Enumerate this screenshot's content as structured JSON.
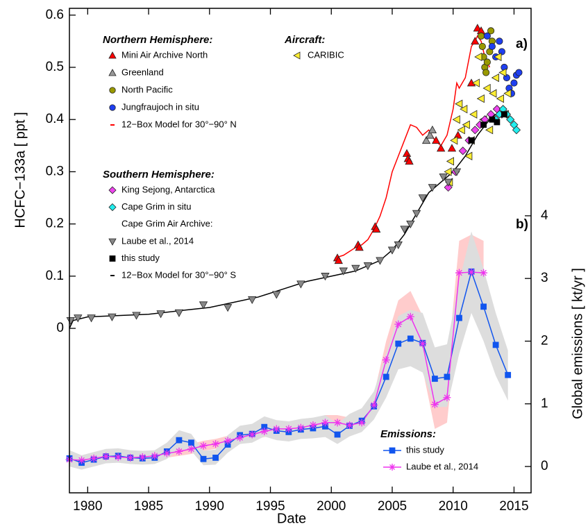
{
  "chart_data": {
    "type": "line",
    "xlabel": "Date",
    "ylabel": "HCFC−133a [ ppt ]",
    "y2label": "Global emissions  [ kt/yr ]",
    "panel_labels": [
      "a)",
      "b)"
    ],
    "xlim": [
      1978.5,
      2016.4
    ],
    "xticks": [
      1980,
      1985,
      1990,
      1995,
      2000,
      2005,
      2010,
      2015
    ],
    "ylim": [
      -0.315,
      0.613
    ],
    "yticks": [
      0,
      0.1,
      0.2,
      0.3,
      0.4,
      0.5,
      0.6
    ],
    "y2lim": [
      -0.42,
      7.31
    ],
    "y2ticks": [
      0,
      1,
      2,
      3,
      4
    ],
    "legend": [
      {
        "title": "Northern Hemisphere:",
        "items": [
          0,
          1,
          2,
          3,
          4
        ]
      },
      {
        "title": "Aircraft:",
        "items": [
          5
        ]
      },
      {
        "title": "Southern Hemisphere:",
        "items": [
          6,
          7
        ]
      },
      {
        "title": "Cape Grim Air Archive:",
        "items": [
          8,
          9,
          10
        ]
      },
      {
        "title": "Emissions:",
        "items": [
          11,
          12
        ]
      }
    ],
    "series": [
      {
        "name": "Mini Air Archive North",
        "color": "#ff0000",
        "label_color": "#ff0000",
        "marker": "triangle-up",
        "line": false,
        "x": [
          2000.5,
          2000.6,
          2002.2,
          2002.3,
          2003.6,
          2003.7,
          2006.2,
          2006.3,
          2006.4,
          2008.6,
          2009.0,
          2009.9,
          2010.4,
          2011.5,
          2011.8,
          2012.0,
          2012.3
        ],
        "values": [
          0.135,
          0.13,
          0.16,
          0.155,
          0.195,
          0.19,
          0.335,
          0.325,
          0.32,
          0.36,
          0.345,
          0.345,
          0.37,
          0.47,
          0.55,
          0.575,
          0.57
        ]
      },
      {
        "name": "Greenland",
        "color": "#999999",
        "label_color": "#999999",
        "marker": "triangle-up",
        "line": false,
        "x": [
          2007.8,
          2008.1,
          2008.3
        ],
        "values": [
          0.36,
          0.37,
          0.38
        ]
      },
      {
        "name": "North Pacific",
        "color": "#999900",
        "label_color": "#999900",
        "marker": "circle",
        "line": false,
        "x": [
          2012.3,
          2012.4,
          2012.5,
          2012.6,
          2012.7,
          2012.8,
          2013.0,
          2013.1,
          2013.2
        ],
        "values": [
          0.56,
          0.54,
          0.52,
          0.5,
          0.49,
          0.51,
          0.53,
          0.57,
          0.55
        ]
      },
      {
        "name": "Jungfraujoch in situ",
        "color": "#1f3ff0",
        "label_color": "#1f3ff0",
        "marker": "circle",
        "line": false,
        "x": [
          2012.8,
          2013.2,
          2013.5,
          2013.8,
          2014.0,
          2014.2,
          2014.4,
          2014.6,
          2014.8,
          2015.0,
          2015.2,
          2015.4
        ],
        "values": [
          0.56,
          0.54,
          0.52,
          0.55,
          0.53,
          0.5,
          0.48,
          0.46,
          0.45,
          0.47,
          0.485,
          0.49
        ]
      },
      {
        "name": "12−Box Model for 30°−90° N",
        "color": "#ff0000",
        "label_color": "#ff0000",
        "marker": "none",
        "line": true,
        "x": [
          2000.3,
          2001,
          2002,
          2002.5,
          2003,
          2003.5,
          2004,
          2004.5,
          2005,
          2005.5,
          2006,
          2006.5,
          2007,
          2007.5,
          2008,
          2008.5,
          2009,
          2009.5,
          2010,
          2010.3,
          2010.5,
          2011,
          2011.5,
          2011.8,
          2012,
          2012.3,
          2012.6,
          2013
        ],
        "values": [
          0.135,
          0.14,
          0.155,
          0.16,
          0.17,
          0.19,
          0.215,
          0.25,
          0.3,
          0.33,
          0.36,
          0.39,
          0.385,
          0.37,
          0.38,
          0.36,
          0.35,
          0.37,
          0.42,
          0.47,
          0.46,
          0.48,
          0.54,
          0.55,
          0.56,
          0.55,
          0.52,
          0.5
        ]
      },
      {
        "name": "CARIBIC",
        "color": "#ffee33",
        "label_color": "#000000",
        "marker": "triangle-left",
        "line": false,
        "x": [
          2009.6,
          2009.7,
          2009.8,
          2010.1,
          2010.3,
          2010.5,
          2010.7,
          2010.9,
          2011.1,
          2011.3,
          2011.5,
          2011.7,
          2011.9,
          2012.1,
          2012.3,
          2012.5,
          2012.8,
          2013.0,
          2013.3,
          2013.5,
          2013.7,
          2013.9,
          2014.1,
          2014.3,
          2014.5
        ],
        "values": [
          0.3,
          0.28,
          0.32,
          0.36,
          0.4,
          0.43,
          0.38,
          0.42,
          0.39,
          0.33,
          0.36,
          0.41,
          0.47,
          0.52,
          0.44,
          0.4,
          0.46,
          0.38,
          0.45,
          0.48,
          0.52,
          0.44,
          0.49,
          0.41,
          0.45
        ]
      },
      {
        "name": "King Sejong, Antarctica",
        "color": "#ee44ee",
        "label_color": "#ee22ee",
        "marker": "diamond",
        "line": false,
        "x": [
          2009.6,
          2010.2,
          2010.8,
          2011.3,
          2011.8,
          2012.2,
          2012.6,
          2013.1,
          2013.6,
          2014.0
        ],
        "values": [
          0.27,
          0.3,
          0.34,
          0.36,
          0.38,
          0.39,
          0.4,
          0.41,
          0.42,
          0.41
        ]
      },
      {
        "name": "Cape Grim in situ",
        "color": "#22eeee",
        "label_color": "#22dddd",
        "marker": "diamond",
        "line": false,
        "x": [
          2013.5,
          2013.8,
          2014.1,
          2014.4,
          2014.7,
          2015.0,
          2015.2
        ],
        "values": [
          0.4,
          0.41,
          0.42,
          0.41,
          0.4,
          0.39,
          0.38
        ]
      },
      {
        "name": "Laube et al., 2014",
        "color": "#888888",
        "label_color": "#999999",
        "marker": "triangle-down",
        "line": false,
        "x": [
          1978.6,
          1979.2,
          1980.3,
          1982.0,
          1984.0,
          1986.0,
          1987.5,
          1989.5,
          1991.5,
          1993.5,
          1995.5,
          1997.5,
          1999.5,
          2001,
          2002,
          2003,
          2004,
          2005,
          2005.5,
          2006,
          2006.5,
          2007,
          2007.5,
          2008.3,
          2009.2,
          2009.6,
          2010.3
        ],
        "values": [
          0.015,
          0.02,
          0.02,
          0.022,
          0.025,
          0.028,
          0.03,
          0.045,
          0.04,
          0.055,
          0.065,
          0.085,
          0.1,
          0.11,
          0.115,
          0.12,
          0.13,
          0.15,
          0.16,
          0.19,
          0.2,
          0.22,
          0.25,
          0.27,
          0.29,
          0.28,
          0.3
        ]
      },
      {
        "name": "this study",
        "color": "#000000",
        "label_color": "#000000",
        "marker": "square",
        "line": false,
        "x": [
          2011.5,
          2012.5,
          2013.2,
          2013.6,
          2014.2
        ],
        "values": [
          0.36,
          0.39,
          0.4,
          0.395,
          0.41
        ]
      },
      {
        "name": "12−Box Model for 30°−90° S",
        "color": "#000000",
        "label_color": "#000000",
        "marker": "none",
        "line": true,
        "x": [
          1978.5,
          1978.8,
          1980,
          1985,
          1988,
          1990,
          1992,
          1994,
          1996,
          1998,
          2000,
          2002,
          2003,
          2004,
          2005,
          2006,
          2007,
          2008,
          2009,
          2010,
          2011,
          2012,
          2013,
          2013.5
        ],
        "values": [
          0.0,
          0.015,
          0.022,
          0.027,
          0.035,
          0.04,
          0.05,
          0.06,
          0.075,
          0.09,
          0.1,
          0.11,
          0.12,
          0.13,
          0.15,
          0.18,
          0.22,
          0.26,
          0.28,
          0.3,
          0.33,
          0.37,
          0.4,
          0.41
        ]
      },
      {
        "name": "this study",
        "color": "#1155ee",
        "label_color": "#1155ee",
        "marker": "square",
        "line": true,
        "axis": "y2",
        "band_color": "#dddddd",
        "x": [
          1978.5,
          1979.5,
          1980.5,
          1981.5,
          1982.5,
          1983.5,
          1984.5,
          1985.5,
          1986.5,
          1987.5,
          1988.5,
          1989.5,
          1990.5,
          1991.5,
          1992.5,
          1993.5,
          1994.5,
          1995.5,
          1996.5,
          1997.5,
          1998.5,
          1999.5,
          2000.5,
          2001.5,
          2002.5,
          2003.5,
          2004.5,
          2005.5,
          2006.5,
          2007.5,
          2008.5,
          2009.5,
          2010.5,
          2011.5,
          2012.5,
          2013.5,
          2014.5
        ],
        "values": [
          0.13,
          0.06,
          0.11,
          0.16,
          0.17,
          0.14,
          0.13,
          0.14,
          0.24,
          0.42,
          0.38,
          0.12,
          0.14,
          0.35,
          0.5,
          0.52,
          0.63,
          0.57,
          0.55,
          0.59,
          0.61,
          0.64,
          0.51,
          0.65,
          0.73,
          0.96,
          1.43,
          1.96,
          2.04,
          1.97,
          1.4,
          1.43,
          2.37,
          3.11,
          2.55,
          1.94,
          1.46
        ],
        "lower": [
          0.0,
          -0.05,
          0.0,
          0.05,
          0.06,
          0.04,
          0.03,
          0.04,
          0.12,
          0.28,
          0.25,
          0.02,
          0.03,
          0.22,
          0.36,
          0.38,
          0.48,
          0.42,
          0.4,
          0.44,
          0.45,
          0.47,
          0.36,
          0.48,
          0.55,
          0.75,
          1.1,
          1.55,
          1.6,
          1.5,
          0.95,
          0.95,
          1.8,
          2.45,
          2.0,
          1.45,
          1.05
        ],
        "upper": [
          0.26,
          0.18,
          0.23,
          0.28,
          0.29,
          0.26,
          0.25,
          0.26,
          0.38,
          0.58,
          0.52,
          0.25,
          0.27,
          0.5,
          0.65,
          0.68,
          0.8,
          0.74,
          0.72,
          0.76,
          0.78,
          0.82,
          0.68,
          0.84,
          0.93,
          1.2,
          1.8,
          2.4,
          2.5,
          2.45,
          1.9,
          1.95,
          2.95,
          3.75,
          3.15,
          2.45,
          1.85
        ]
      },
      {
        "name": "Laube et al., 2014",
        "color": "#ee33ee",
        "label_color": "#ee33ee",
        "marker": "star",
        "line": true,
        "axis": "y2",
        "band_color": "#ffcccc",
        "x": [
          1978.5,
          1979.5,
          1980.5,
          1981.5,
          1982.5,
          1983.5,
          1984.5,
          1985.5,
          1986.5,
          1987.5,
          1988.5,
          1989.5,
          1990.5,
          1991.5,
          1992.5,
          1993.5,
          1994.5,
          1995.5,
          1996.5,
          1997.5,
          1998.5,
          1999.5,
          2000.5,
          2001.5,
          2002.5,
          2003.5,
          2004.5,
          2005.5,
          2006.5,
          2007.5,
          2008.5,
          2009.5,
          2010.5,
          2011.5,
          2012.5
        ],
        "values": [
          0.11,
          0.1,
          0.13,
          0.16,
          0.15,
          0.14,
          0.15,
          0.17,
          0.21,
          0.24,
          0.28,
          0.33,
          0.36,
          0.41,
          0.46,
          0.51,
          0.56,
          0.6,
          0.6,
          0.62,
          0.66,
          0.7,
          0.7,
          0.66,
          0.7,
          0.98,
          1.7,
          2.27,
          2.39,
          1.96,
          0.99,
          1.1,
          3.09,
          3.1,
          3.09
        ],
        "lower": [
          0.04,
          0.03,
          0.06,
          0.09,
          0.08,
          0.07,
          0.08,
          0.1,
          0.14,
          0.17,
          0.2,
          0.25,
          0.28,
          0.33,
          0.38,
          0.42,
          0.47,
          0.5,
          0.5,
          0.52,
          0.55,
          0.58,
          0.58,
          0.54,
          0.57,
          0.8,
          1.4,
          1.9,
          2.0,
          1.55,
          0.6,
          0.7,
          2.6,
          2.6,
          2.6
        ],
        "upper": [
          0.18,
          0.17,
          0.2,
          0.23,
          0.22,
          0.21,
          0.22,
          0.24,
          0.28,
          0.31,
          0.36,
          0.41,
          0.44,
          0.49,
          0.54,
          0.6,
          0.65,
          0.7,
          0.7,
          0.72,
          0.77,
          0.82,
          0.82,
          0.78,
          0.83,
          1.15,
          2.0,
          2.65,
          2.8,
          2.4,
          1.4,
          1.5,
          3.6,
          3.7,
          3.6
        ]
      }
    ]
  }
}
